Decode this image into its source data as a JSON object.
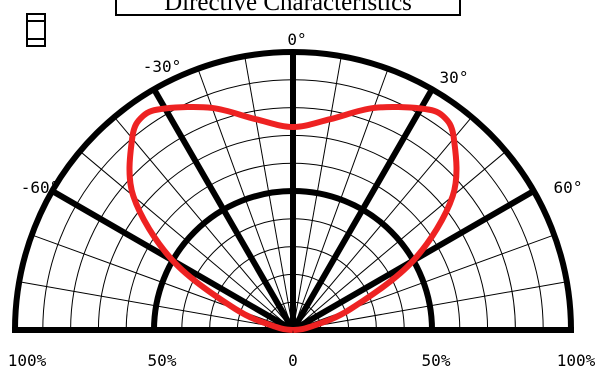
{
  "chart_data": {
    "type": "line",
    "title": "Directive Characteristics",
    "angle_ticks": [
      "0°",
      "30°",
      "-30°",
      "60°",
      "-60°"
    ],
    "radial_ticks": [
      "100%",
      "50%",
      "0",
      "50%",
      "100%"
    ],
    "radial_range": [
      0,
      100
    ],
    "angle_range": [
      -90,
      90
    ],
    "grid": true,
    "series": [
      {
        "color": "#ee2222",
        "points": [
          {
            "angle": -90,
            "value": 0
          },
          {
            "angle": -80,
            "value": 6
          },
          {
            "angle": -70,
            "value": 22
          },
          {
            "angle": -60,
            "value": 50
          },
          {
            "angle": -50,
            "value": 75
          },
          {
            "angle": -40,
            "value": 90
          },
          {
            "angle": -35,
            "value": 94
          },
          {
            "angle": -30,
            "value": 92
          },
          {
            "angle": -20,
            "value": 85
          },
          {
            "angle": -10,
            "value": 77
          },
          {
            "angle": 0,
            "value": 73
          },
          {
            "angle": 10,
            "value": 77
          },
          {
            "angle": 20,
            "value": 85
          },
          {
            "angle": 30,
            "value": 92
          },
          {
            "angle": 35,
            "value": 94
          },
          {
            "angle": 40,
            "value": 90
          },
          {
            "angle": 50,
            "value": 75
          },
          {
            "angle": 60,
            "value": 50
          },
          {
            "angle": 70,
            "value": 22
          },
          {
            "angle": 80,
            "value": 6
          },
          {
            "angle": 90,
            "value": 0
          }
        ]
      }
    ]
  },
  "colors": {
    "curve": "#ee2222",
    "grid": "#000000"
  },
  "icons": {
    "led": "led-package-icon"
  }
}
